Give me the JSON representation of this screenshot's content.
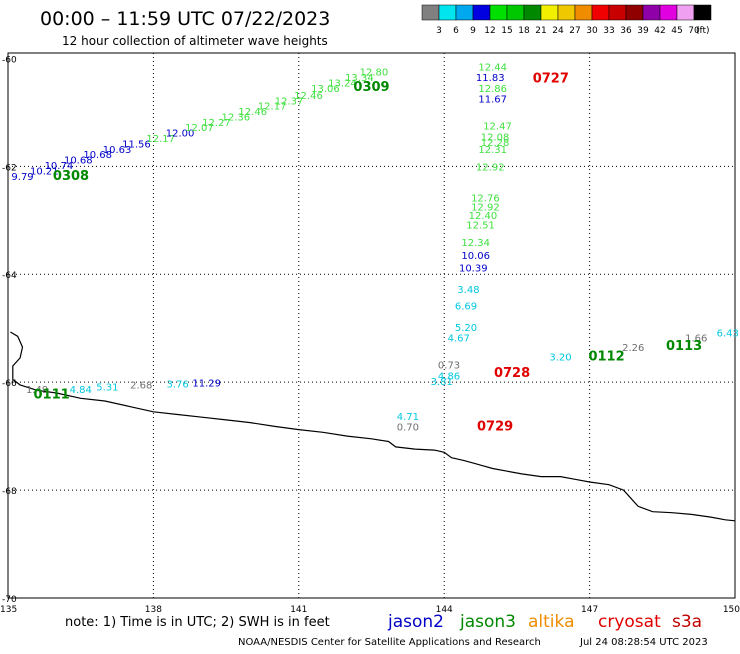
{
  "header": {
    "title": "00:00 – 11:59 UTC 07/22/2023",
    "subtitle": "12 hour collection of altimeter wave heights"
  },
  "colorbar": {
    "unit": "(ft)",
    "bins": [
      {
        "label": "3",
        "color": "#808080"
      },
      {
        "label": "6",
        "color": "#00e5ee"
      },
      {
        "label": "9",
        "color": "#00a8f0"
      },
      {
        "label": "12",
        "color": "#0000e0"
      },
      {
        "label": "15",
        "color": "#00e000"
      },
      {
        "label": "18",
        "color": "#00c800"
      },
      {
        "label": "21",
        "color": "#008800"
      },
      {
        "label": "24",
        "color": "#f0f000"
      },
      {
        "label": "27",
        "color": "#f0c800"
      },
      {
        "label": "30",
        "color": "#f08c00"
      },
      {
        "label": "33",
        "color": "#f00000"
      },
      {
        "label": "36",
        "color": "#c80000"
      },
      {
        "label": "39",
        "color": "#900000"
      },
      {
        "label": "42",
        "color": "#9000a8"
      },
      {
        "label": "45",
        "color": "#e000e0"
      },
      {
        "label": "70",
        "color": "#f0a0f0"
      },
      {
        "label": "",
        "color": "#000000"
      }
    ]
  },
  "axes": {
    "lon_ticks": [
      "135",
      "138",
      "141",
      "144",
      "147",
      "150"
    ],
    "lat_ticks": [
      "-60",
      "-62",
      "-64",
      "-66",
      "-68",
      "-70"
    ]
  },
  "colors": {
    "grey": "#707070",
    "cyan": "#00c8e0",
    "blue": "#0000c8",
    "lightgreen": "#40e040",
    "green": "#008800",
    "red": "#e00000",
    "orange": "#f08c00",
    "darkred": "#c00000"
  },
  "map_data": {
    "extent": {
      "lon": [
        135,
        150
      ],
      "lat": [
        -70,
        -59.9
      ]
    },
    "coastline": [
      [
        135.05,
        -65.07
      ],
      [
        135.2,
        -65.15
      ],
      [
        135.3,
        -65.35
      ],
      [
        135.25,
        -65.55
      ],
      [
        135.1,
        -65.7
      ],
      [
        135.1,
        -65.95
      ],
      [
        135.25,
        -66.05
      ],
      [
        135.6,
        -66.15
      ],
      [
        136.0,
        -66.2
      ],
      [
        136.5,
        -66.3
      ],
      [
        137.0,
        -66.35
      ],
      [
        137.5,
        -66.45
      ],
      [
        138.0,
        -66.55
      ],
      [
        138.5,
        -66.6
      ],
      [
        139.0,
        -66.65
      ],
      [
        139.5,
        -66.7
      ],
      [
        140.0,
        -66.75
      ],
      [
        140.5,
        -66.82
      ],
      [
        141.0,
        -66.88
      ],
      [
        141.5,
        -66.93
      ],
      [
        142.0,
        -67.0
      ],
      [
        142.5,
        -67.05
      ],
      [
        142.85,
        -67.1
      ],
      [
        143.0,
        -67.2
      ],
      [
        143.4,
        -67.24
      ],
      [
        143.8,
        -67.26
      ],
      [
        144.0,
        -67.3
      ],
      [
        144.15,
        -67.4
      ],
      [
        144.4,
        -67.45
      ],
      [
        144.6,
        -67.5
      ],
      [
        144.8,
        -67.55
      ],
      [
        145.0,
        -67.6
      ],
      [
        145.3,
        -67.65
      ],
      [
        145.6,
        -67.7
      ],
      [
        146.0,
        -67.75
      ],
      [
        146.4,
        -67.75
      ],
      [
        146.7,
        -67.8
      ],
      [
        147.0,
        -67.85
      ],
      [
        147.4,
        -67.9
      ],
      [
        147.7,
        -68.0
      ],
      [
        147.85,
        -68.15
      ],
      [
        148.0,
        -68.3
      ],
      [
        148.3,
        -68.4
      ],
      [
        148.7,
        -68.42
      ],
      [
        149.1,
        -68.45
      ],
      [
        149.5,
        -68.5
      ],
      [
        149.8,
        -68.55
      ],
      [
        150.0,
        -68.57
      ]
    ],
    "points": [
      {
        "lon": 135.3,
        "lat": -62.25,
        "text": "9.79",
        "color": "blue"
      },
      {
        "lon": 135.75,
        "lat": -62.15,
        "text": "10.21",
        "color": "blue"
      },
      {
        "lon": 136.05,
        "lat": -62.05,
        "text": "10.74",
        "color": "blue"
      },
      {
        "lon": 136.45,
        "lat": -61.95,
        "text": "10.68",
        "color": "blue"
      },
      {
        "lon": 136.85,
        "lat": -61.85,
        "text": "10.68",
        "color": "blue"
      },
      {
        "lon": 137.25,
        "lat": -61.75,
        "text": "10.63",
        "color": "blue"
      },
      {
        "lon": 137.65,
        "lat": -61.65,
        "text": "11.56",
        "color": "blue"
      },
      {
        "lon": 138.15,
        "lat": -61.55,
        "text": "12.17",
        "color": "lightgreen"
      },
      {
        "lon": 138.55,
        "lat": -61.45,
        "text": "12.00",
        "color": "blue"
      },
      {
        "lon": 138.95,
        "lat": -61.35,
        "text": "12.07",
        "color": "lightgreen"
      },
      {
        "lon": 139.3,
        "lat": -61.25,
        "text": "12.27",
        "color": "lightgreen"
      },
      {
        "lon": 139.7,
        "lat": -61.15,
        "text": "12.36",
        "color": "lightgreen"
      },
      {
        "lon": 140.05,
        "lat": -61.05,
        "text": "12.46",
        "color": "lightgreen"
      },
      {
        "lon": 140.45,
        "lat": -60.95,
        "text": "12.17",
        "color": "lightgreen"
      },
      {
        "lon": 140.8,
        "lat": -60.85,
        "text": "12.37",
        "color": "lightgreen"
      },
      {
        "lon": 141.2,
        "lat": -60.75,
        "text": "12.46",
        "color": "lightgreen"
      },
      {
        "lon": 141.55,
        "lat": -60.62,
        "text": "13.06",
        "color": "lightgreen"
      },
      {
        "lon": 141.9,
        "lat": -60.52,
        "text": "13.24",
        "color": "lightgreen"
      },
      {
        "lon": 142.25,
        "lat": -60.42,
        "text": "13.34",
        "color": "lightgreen"
      },
      {
        "lon": 142.55,
        "lat": -60.32,
        "text": "12.80",
        "color": "lightgreen"
      },
      {
        "lon": 145.0,
        "lat": -60.22,
        "text": "12.44",
        "color": "lightgreen"
      },
      {
        "lon": 144.95,
        "lat": -60.42,
        "text": "11.83",
        "color": "blue"
      },
      {
        "lon": 145.0,
        "lat": -60.62,
        "text": "12.86",
        "color": "lightgreen"
      },
      {
        "lon": 145.0,
        "lat": -60.82,
        "text": "11.67",
        "color": "blue"
      },
      {
        "lon": 145.1,
        "lat": -61.32,
        "text": "12.47",
        "color": "lightgreen"
      },
      {
        "lon": 145.05,
        "lat": -61.52,
        "text": "12.08",
        "color": "lightgreen"
      },
      {
        "lon": 145.05,
        "lat": -61.62,
        "text": "12.28",
        "color": "lightgreen"
      },
      {
        "lon": 145.0,
        "lat": -61.75,
        "text": "12.31",
        "color": "lightgreen"
      },
      {
        "lon": 144.95,
        "lat": -62.08,
        "text": "12.92",
        "color": "lightgreen"
      },
      {
        "lon": 144.85,
        "lat": -62.65,
        "text": "12.76",
        "color": "lightgreen"
      },
      {
        "lon": 144.85,
        "lat": -62.82,
        "text": "12.92",
        "color": "lightgreen"
      },
      {
        "lon": 144.8,
        "lat": -62.98,
        "text": "12.40",
        "color": "lightgreen"
      },
      {
        "lon": 144.75,
        "lat": -63.15,
        "text": "12.51",
        "color": "lightgreen"
      },
      {
        "lon": 144.65,
        "lat": -63.48,
        "text": "12.34",
        "color": "lightgreen"
      },
      {
        "lon": 144.65,
        "lat": -63.72,
        "text": "10.06",
        "color": "blue"
      },
      {
        "lon": 144.6,
        "lat": -63.95,
        "text": "10.39",
        "color": "blue"
      },
      {
        "lon": 144.5,
        "lat": -64.35,
        "text": "3.48",
        "color": "cyan"
      },
      {
        "lon": 144.45,
        "lat": -64.65,
        "text": "6.69",
        "color": "cyan"
      },
      {
        "lon": 144.45,
        "lat": -65.05,
        "text": "5.20",
        "color": "cyan"
      },
      {
        "lon": 144.3,
        "lat": -65.25,
        "text": "4.67",
        "color": "cyan"
      },
      {
        "lon": 144.1,
        "lat": -65.75,
        "text": "0.73",
        "color": "grey"
      },
      {
        "lon": 144.1,
        "lat": -65.95,
        "text": "4.86",
        "color": "cyan"
      },
      {
        "lon": 143.95,
        "lat": -66.05,
        "text": "3.81",
        "color": "cyan"
      },
      {
        "lon": 143.25,
        "lat": -66.7,
        "text": "4.71",
        "color": "cyan"
      },
      {
        "lon": 143.25,
        "lat": -66.9,
        "text": "0.70",
        "color": "grey"
      },
      {
        "lon": 146.4,
        "lat": -65.6,
        "text": "3.20",
        "color": "cyan"
      },
      {
        "lon": 147.9,
        "lat": -65.42,
        "text": "2.26",
        "color": "grey"
      },
      {
        "lon": 149.2,
        "lat": -65.25,
        "text": "1.66",
        "color": "grey"
      },
      {
        "lon": 149.85,
        "lat": -65.15,
        "text": "6.43",
        "color": "cyan"
      },
      {
        "lon": 135.6,
        "lat": -66.2,
        "text": "1.49",
        "color": "grey"
      },
      {
        "lon": 136.5,
        "lat": -66.2,
        "text": "4.84",
        "color": "cyan"
      },
      {
        "lon": 137.05,
        "lat": -66.15,
        "text": "5.31",
        "color": "cyan"
      },
      {
        "lon": 137.75,
        "lat": -66.12,
        "text": "2.68",
        "color": "grey"
      },
      {
        "lon": 138.5,
        "lat": -66.1,
        "text": "3.76",
        "color": "cyan"
      },
      {
        "lon": 139.1,
        "lat": -66.08,
        "text": "11.29",
        "color": "blue"
      }
    ],
    "passes": [
      {
        "lon": 136.3,
        "lat": -62.25,
        "text": "0308",
        "color": "green"
      },
      {
        "lon": 142.5,
        "lat": -60.6,
        "text": "0309",
        "color": "green"
      },
      {
        "lon": 146.2,
        "lat": -60.45,
        "text": "0727",
        "color": "red"
      },
      {
        "lon": 145.4,
        "lat": -65.9,
        "text": "0728",
        "color": "red"
      },
      {
        "lon": 145.05,
        "lat": -66.9,
        "text": "0729",
        "color": "red"
      },
      {
        "lon": 147.35,
        "lat": -65.6,
        "text": "0112",
        "color": "green"
      },
      {
        "lon": 148.95,
        "lat": -65.4,
        "text": "0113",
        "color": "green"
      },
      {
        "lon": 135.9,
        "lat": -66.3,
        "text": "0111",
        "color": "green"
      }
    ]
  },
  "footer": {
    "note": "note: 1) Time is in UTC; 2) SWH is in feet",
    "satellites": [
      {
        "label": "jason2",
        "color": "#0000c8"
      },
      {
        "label": "jason3",
        "color": "#008800"
      },
      {
        "label": "altika",
        "color": "#f08c00"
      },
      {
        "label": "cryosat",
        "color": "#e00000"
      },
      {
        "label": "s3a",
        "color": "#c00000"
      }
    ],
    "credit": "NOAA/NESDIS Center for Satellite Applications and Research",
    "timestamp": "Jul 24 08:28:54 UTC 2023"
  }
}
